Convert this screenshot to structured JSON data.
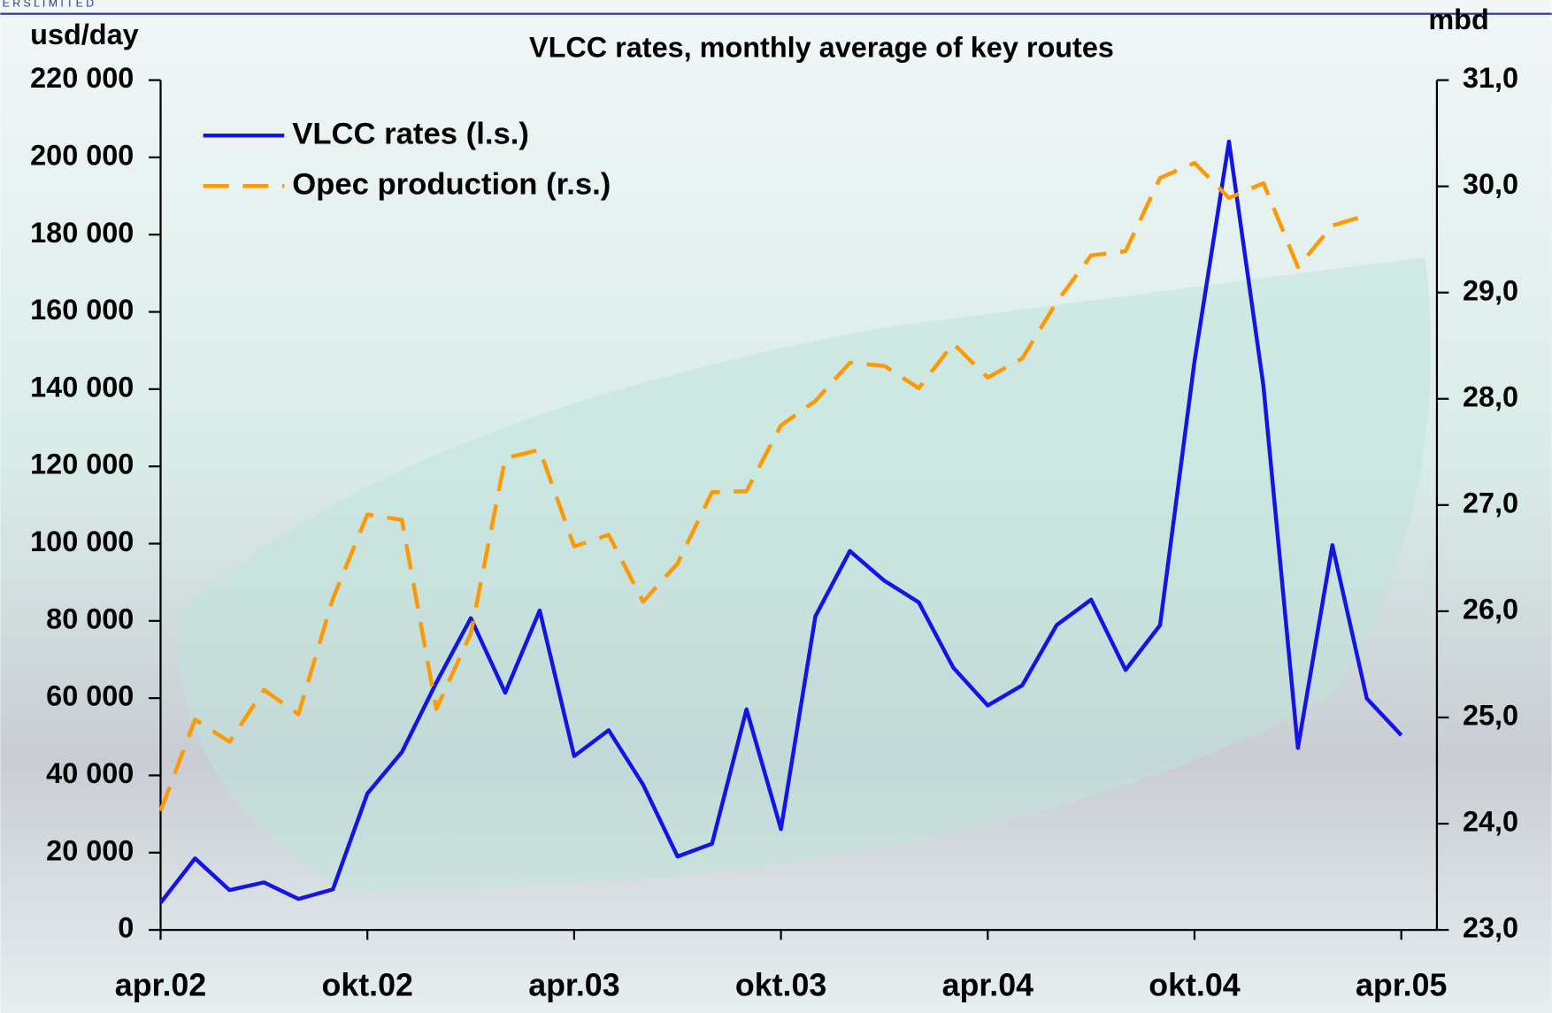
{
  "header_text": "E R S   L I M I T E D",
  "chart_data": {
    "type": "line",
    "title": "VLCC rates, monthly average of key routes",
    "y_label": "usd/day",
    "y2_label": "mbd",
    "categories": [
      "apr.02",
      null,
      null,
      null,
      null,
      null,
      "okt.02",
      null,
      null,
      null,
      null,
      null,
      "apr.03",
      null,
      null,
      null,
      null,
      null,
      "okt.03",
      null,
      null,
      null,
      null,
      null,
      "apr.04",
      null,
      null,
      null,
      null,
      null,
      "okt.04",
      null,
      null,
      null,
      null,
      null,
      "apr.05"
    ],
    "series": [
      {
        "name": "VLCC rates (l.s.)",
        "color": "#1414e6",
        "style": "solid",
        "values": [
          7000,
          18500,
          10300,
          12300,
          8000,
          10500,
          35300,
          46000,
          64000,
          80700,
          61400,
          82700,
          45000,
          51700,
          37600,
          19000,
          22300,
          57100,
          26100,
          81200,
          98100,
          90400,
          84800,
          67900,
          58100,
          63300,
          78900,
          85500,
          67300,
          78900,
          147200,
          204100,
          140800,
          47100,
          99600,
          59900,
          50400
        ]
      },
      {
        "name": "Opec production (r.s.)",
        "color": "#ff9900",
        "style": "dashed",
        "axis": "y2",
        "values": [
          24.12,
          24.98,
          24.77,
          25.26,
          25.03,
          26.12,
          26.91,
          26.86,
          25.08,
          25.79,
          27.44,
          27.52,
          26.61,
          26.72,
          26.09,
          26.45,
          27.12,
          27.13,
          27.75,
          27.98,
          28.34,
          28.31,
          28.1,
          28.52,
          28.2,
          28.38,
          28.91,
          29.35,
          29.39,
          30.08,
          30.22,
          29.89,
          30.03,
          29.24,
          29.63,
          29.73,
          null
        ]
      }
    ],
    "ylim": [
      0,
      220000
    ],
    "yticks": [
      0,
      {
        "value": 20000,
        "label": "20 000"
      },
      {
        "value": 40000,
        "label": "40 000"
      },
      {
        "value": 60000,
        "label": "60 000"
      },
      {
        "value": 80000,
        "label": "80 000"
      },
      {
        "value": 100000,
        "label": "100 000"
      },
      {
        "value": 120000,
        "label": "120 000"
      },
      {
        "value": 140000,
        "label": "140 000"
      },
      {
        "value": 160000,
        "label": "160 000"
      },
      {
        "value": 180000,
        "label": "180 000"
      },
      {
        "value": 200000,
        "label": "200 000"
      },
      {
        "value": 220000,
        "label": "220 000"
      }
    ],
    "y2lim": [
      23,
      31
    ],
    "y2ticks": [
      {
        "value": 23,
        "label": "23,0"
      },
      {
        "value": 24,
        "label": "24,0"
      },
      {
        "value": 25,
        "label": "25,0"
      },
      {
        "value": 26,
        "label": "26,0"
      },
      {
        "value": 27,
        "label": "27,0"
      },
      {
        "value": 28,
        "label": "28,0"
      },
      {
        "value": 29,
        "label": "29,0"
      },
      {
        "value": 30,
        "label": "30,0"
      },
      {
        "value": 31,
        "label": "31,0"
      }
    ],
    "legend": "upper left",
    "grid": false
  }
}
